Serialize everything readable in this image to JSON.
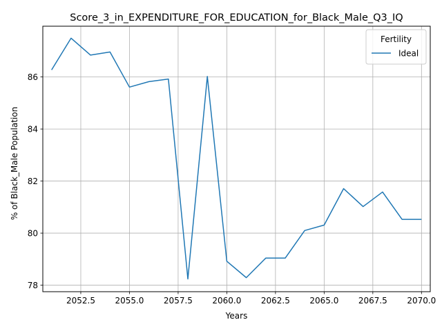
{
  "chart_data": {
    "type": "line",
    "title": "Score_3_in_EXPENDITURE_FOR_EDUCATION_for_Black_Male_Q3_IQ",
    "xlabel": "Years",
    "ylabel": "% of Black_Male Population",
    "xlim": [
      2050.55,
      2070.45
    ],
    "ylim": [
      77.75,
      87.95
    ],
    "xticks": [
      2052.5,
      2055.0,
      2057.5,
      2060.0,
      2062.5,
      2065.0,
      2067.5,
      2070.0
    ],
    "xtick_labels": [
      "2052.5",
      "2055.0",
      "2057.5",
      "2060.0",
      "2062.5",
      "2065.0",
      "2067.5",
      "2070.0"
    ],
    "yticks": [
      78,
      80,
      82,
      84,
      86
    ],
    "ytick_labels": [
      "78",
      "80",
      "82",
      "84",
      "86"
    ],
    "grid": true,
    "legend": {
      "title": "Fertility",
      "position": "top-right"
    },
    "series": [
      {
        "name": "Ideal",
        "color": "#1f77b4",
        "x": [
          2051,
          2052,
          2053,
          2054,
          2055,
          2056,
          2057,
          2058,
          2059,
          2060,
          2061,
          2062,
          2063,
          2064,
          2065,
          2066,
          2067,
          2068,
          2069,
          2070
        ],
        "y": [
          86.27,
          87.49,
          86.84,
          86.96,
          85.61,
          85.82,
          85.92,
          78.24,
          86.02,
          78.92,
          78.29,
          79.04,
          79.04,
          80.1,
          80.31,
          81.71,
          81.02,
          81.58,
          80.53,
          80.53
        ]
      }
    ]
  }
}
